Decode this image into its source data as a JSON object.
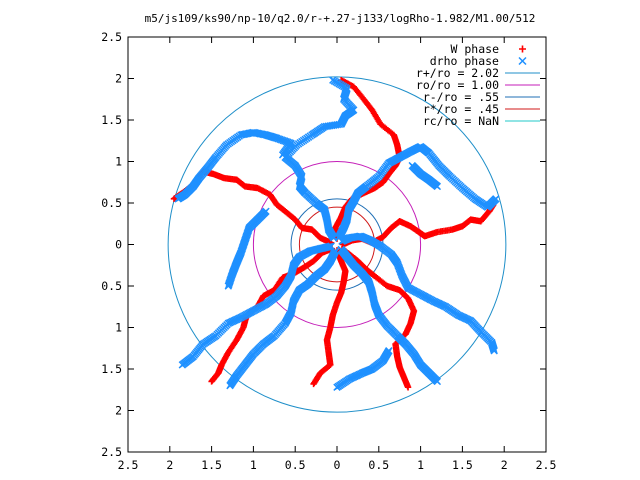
{
  "chart_data": {
    "type": "scatter",
    "title": "m5/js109/ks90/np-10/q2.0/r-+.27-j133/logRho-1.982/M1.00/512",
    "xlabel": "",
    "ylabel": "",
    "xlim": [
      -2.5,
      2.5
    ],
    "ylim": [
      -2.5,
      2.5
    ],
    "x_ticks": [
      "2.5",
      "2",
      "1.5",
      "1",
      "0.5",
      "0",
      "0.5",
      "1",
      "1.5",
      "2",
      "2.5"
    ],
    "y_ticks": [
      "2.5",
      "2",
      "1.5",
      "1",
      "0.5",
      "0",
      "0.5",
      "1",
      "1.5",
      "2",
      "2.5"
    ],
    "grid": false,
    "legend_position": "top-right",
    "series": [
      {
        "name": "W phase",
        "marker": "+",
        "color": "#ff0000",
        "arms": [
          [
            [
              0.07,
              0.0
            ],
            [
              0.18,
              0.05
            ],
            [
              0.3,
              0.07
            ],
            [
              0.42,
              0.02
            ],
            [
              0.55,
              0.09
            ],
            [
              0.65,
              0.2
            ],
            [
              0.75,
              0.28
            ],
            [
              0.88,
              0.22
            ],
            [
              0.98,
              0.15
            ],
            [
              1.05,
              0.1
            ],
            [
              1.2,
              0.15
            ],
            [
              1.38,
              0.18
            ],
            [
              1.5,
              0.22
            ],
            [
              1.6,
              0.3
            ],
            [
              1.72,
              0.28
            ],
            [
              1.82,
              0.4
            ],
            [
              1.87,
              0.48
            ]
          ],
          [
            [
              0.0,
              0.07
            ],
            [
              -0.02,
              0.2
            ],
            [
              0.05,
              0.33
            ],
            [
              0.1,
              0.45
            ],
            [
              0.18,
              0.55
            ],
            [
              0.32,
              0.62
            ],
            [
              0.45,
              0.68
            ],
            [
              0.55,
              0.75
            ],
            [
              0.62,
              0.85
            ],
            [
              0.7,
              0.95
            ],
            [
              0.75,
              1.05
            ],
            [
              0.72,
              1.2
            ],
            [
              0.68,
              1.32
            ],
            [
              0.52,
              1.45
            ],
            [
              0.42,
              1.62
            ],
            [
              0.32,
              1.75
            ],
            [
              0.2,
              1.9
            ],
            [
              0.05,
              1.98
            ]
          ],
          [
            [
              -0.07,
              0.02
            ],
            [
              -0.2,
              0.08
            ],
            [
              -0.3,
              0.18
            ],
            [
              -0.42,
              0.2
            ],
            [
              -0.5,
              0.3
            ],
            [
              -0.62,
              0.4
            ],
            [
              -0.72,
              0.48
            ],
            [
              -0.8,
              0.6
            ],
            [
              -0.95,
              0.68
            ],
            [
              -1.1,
              0.7
            ],
            [
              -1.2,
              0.78
            ],
            [
              -1.35,
              0.8
            ],
            [
              -1.48,
              0.85
            ],
            [
              -1.6,
              0.88
            ],
            [
              -1.72,
              0.72
            ],
            [
              -1.85,
              0.62
            ],
            [
              -1.95,
              0.55
            ]
          ],
          [
            [
              -0.06,
              -0.05
            ],
            [
              -0.18,
              -0.1
            ],
            [
              -0.28,
              -0.2
            ],
            [
              -0.4,
              -0.28
            ],
            [
              -0.52,
              -0.35
            ],
            [
              -0.65,
              -0.4
            ],
            [
              -0.75,
              -0.55
            ],
            [
              -0.88,
              -0.62
            ],
            [
              -0.95,
              -0.75
            ],
            [
              -1.08,
              -0.85
            ],
            [
              -1.12,
              -1.0
            ],
            [
              -1.2,
              -1.15
            ],
            [
              -1.3,
              -1.3
            ],
            [
              -1.38,
              -1.45
            ],
            [
              -1.42,
              -1.55
            ],
            [
              -1.5,
              -1.65
            ]
          ],
          [
            [
              0.0,
              -0.07
            ],
            [
              0.05,
              -0.2
            ],
            [
              0.1,
              -0.32
            ],
            [
              0.08,
              -0.45
            ],
            [
              0.05,
              -0.58
            ],
            [
              0.0,
              -0.7
            ],
            [
              -0.05,
              -0.85
            ],
            [
              -0.08,
              -1.0
            ],
            [
              -0.12,
              -1.15
            ],
            [
              -0.1,
              -1.3
            ],
            [
              -0.08,
              -1.45
            ],
            [
              -0.2,
              -1.55
            ],
            [
              -0.28,
              -1.68
            ]
          ],
          [
            [
              0.06,
              -0.05
            ],
            [
              0.15,
              -0.12
            ],
            [
              0.25,
              -0.2
            ],
            [
              0.35,
              -0.3
            ],
            [
              0.45,
              -0.38
            ],
            [
              0.6,
              -0.5
            ],
            [
              0.75,
              -0.55
            ],
            [
              0.85,
              -0.65
            ],
            [
              0.92,
              -0.8
            ],
            [
              0.88,
              -0.95
            ],
            [
              0.82,
              -1.08
            ],
            [
              0.7,
              -1.2
            ],
            [
              0.72,
              -1.35
            ],
            [
              0.75,
              -1.48
            ],
            [
              0.8,
              -1.6
            ],
            [
              0.85,
              -1.72
            ]
          ]
        ]
      },
      {
        "name": "drho phase",
        "marker": "x",
        "color": "#1e90ff",
        "arms": [
          [
            [
              0.06,
              0.04
            ],
            [
              0.15,
              0.08
            ],
            [
              0.28,
              0.1
            ],
            [
              0.4,
              0.05
            ],
            [
              0.52,
              -0.02
            ],
            [
              0.65,
              -0.12
            ],
            [
              0.72,
              -0.22
            ],
            [
              0.78,
              -0.38
            ],
            [
              0.85,
              -0.52
            ],
            [
              1.0,
              -0.6
            ],
            [
              1.15,
              -0.68
            ],
            [
              1.3,
              -0.75
            ],
            [
              1.45,
              -0.85
            ],
            [
              1.6,
              -0.92
            ],
            [
              1.72,
              -1.05
            ],
            [
              1.85,
              -1.18
            ],
            [
              1.88,
              -1.28
            ]
          ],
          [
            [
              0.02,
              0.08
            ],
            [
              0.08,
              0.2
            ],
            [
              0.12,
              0.3
            ],
            [
              0.14,
              0.42
            ],
            [
              0.2,
              0.52
            ],
            [
              0.25,
              0.62
            ],
            [
              0.35,
              0.7
            ],
            [
              0.5,
              0.82
            ],
            [
              0.62,
              0.98
            ],
            [
              0.75,
              1.05
            ],
            [
              0.88,
              1.12
            ],
            [
              1.0,
              1.18
            ],
            [
              1.1,
              1.1
            ],
            [
              1.22,
              0.95
            ],
            [
              1.35,
              0.82
            ],
            [
              1.5,
              0.68
            ],
            [
              1.65,
              0.55
            ],
            [
              1.8,
              0.45
            ],
            [
              1.9,
              0.55
            ]
          ],
          [
            [
              -0.04,
              0.08
            ],
            [
              -0.1,
              0.18
            ],
            [
              -0.12,
              0.3
            ],
            [
              -0.15,
              0.42
            ],
            [
              -0.25,
              0.5
            ],
            [
              -0.38,
              0.62
            ],
            [
              -0.45,
              0.7
            ],
            [
              -0.42,
              0.82
            ],
            [
              -0.5,
              0.95
            ],
            [
              -0.62,
              1.05
            ],
            [
              -0.48,
              1.2
            ],
            [
              -0.3,
              1.32
            ],
            [
              -0.15,
              1.42
            ],
            [
              0.05,
              1.45
            ],
            [
              0.1,
              1.55
            ],
            [
              0.2,
              1.62
            ],
            [
              0.08,
              1.75
            ],
            [
              0.12,
              1.88
            ],
            [
              -0.05,
              1.98
            ]
          ],
          [
            [
              -0.07,
              -0.02
            ],
            [
              -0.2,
              -0.05
            ],
            [
              -0.32,
              -0.08
            ],
            [
              -0.45,
              -0.15
            ],
            [
              -0.52,
              -0.25
            ],
            [
              -0.55,
              -0.38
            ],
            [
              -0.62,
              -0.5
            ],
            [
              -0.72,
              -0.62
            ],
            [
              -0.85,
              -0.72
            ],
            [
              -1.0,
              -0.8
            ],
            [
              -1.15,
              -0.88
            ],
            [
              -1.3,
              -0.95
            ],
            [
              -1.45,
              -1.1
            ],
            [
              -1.6,
              -1.2
            ],
            [
              -1.72,
              -1.35
            ],
            [
              -1.85,
              -1.45
            ]
          ],
          [
            [
              -0.02,
              -0.08
            ],
            [
              -0.08,
              -0.2
            ],
            [
              -0.15,
              -0.3
            ],
            [
              -0.25,
              -0.38
            ],
            [
              -0.35,
              -0.48
            ],
            [
              -0.45,
              -0.55
            ],
            [
              -0.52,
              -0.68
            ],
            [
              -0.55,
              -0.82
            ],
            [
              -0.62,
              -0.95
            ],
            [
              -0.75,
              -1.1
            ],
            [
              -0.88,
              -1.2
            ],
            [
              -1.0,
              -1.32
            ],
            [
              -1.1,
              -1.45
            ],
            [
              -1.2,
              -1.58
            ],
            [
              -1.28,
              -1.7
            ]
          ],
          [
            [
              0.05,
              -0.06
            ],
            [
              0.12,
              -0.15
            ],
            [
              0.2,
              -0.25
            ],
            [
              0.3,
              -0.35
            ],
            [
              0.38,
              -0.45
            ],
            [
              0.42,
              -0.58
            ],
            [
              0.45,
              -0.72
            ],
            [
              0.5,
              -0.85
            ],
            [
              0.6,
              -0.98
            ],
            [
              0.72,
              -1.1
            ],
            [
              0.82,
              -1.2
            ],
            [
              0.92,
              -1.32
            ],
            [
              1.0,
              -1.45
            ],
            [
              1.1,
              -1.55
            ],
            [
              1.2,
              -1.65
            ]
          ],
          [
            [
              -0.65,
              1.08
            ],
            [
              -0.55,
              1.22
            ],
            [
              -0.72,
              1.28
            ],
            [
              -0.85,
              1.32
            ],
            [
              -1.0,
              1.35
            ],
            [
              -1.15,
              1.32
            ],
            [
              -1.32,
              1.2
            ],
            [
              -1.45,
              1.05
            ],
            [
              -1.55,
              0.92
            ],
            [
              -1.65,
              0.8
            ],
            [
              -1.72,
              0.7
            ],
            [
              -1.82,
              0.6
            ],
            [
              -1.9,
              0.55
            ]
          ],
          [
            [
              -0.85,
              0.4
            ],
            [
              -0.95,
              0.3
            ],
            [
              -1.05,
              0.2
            ],
            [
              -1.1,
              0.05
            ],
            [
              -1.15,
              -0.1
            ],
            [
              -1.2,
              -0.22
            ],
            [
              -1.25,
              -0.35
            ],
            [
              -1.3,
              -0.5
            ]
          ],
          [
            [
              0.0,
              -1.72
            ],
            [
              0.15,
              -1.62
            ],
            [
              0.3,
              -1.55
            ],
            [
              0.42,
              -1.5
            ],
            [
              0.55,
              -1.4
            ],
            [
              0.62,
              -1.28
            ]
          ],
          [
            [
              0.9,
              0.95
            ],
            [
              1.0,
              0.85
            ],
            [
              1.1,
              0.78
            ],
            [
              1.2,
              0.7
            ]
          ]
        ]
      },
      {
        "name": "r+/ro = 2.02",
        "type": "circle",
        "radius": 2.02,
        "color": "#1f8fc9"
      },
      {
        "name": "ro/ro = 1.00",
        "type": "circle",
        "radius": 1.0,
        "color": "#c41eb8"
      },
      {
        "name": "r-/ro = .55",
        "type": "circle",
        "radius": 0.55,
        "color": "#1f6fb5"
      },
      {
        "name": "r*/ro = .45",
        "type": "circle",
        "radius": 0.45,
        "color": "#d01818"
      },
      {
        "name": "rc/ro = NaN",
        "type": "circle",
        "radius": null,
        "color": "#22c8c8"
      }
    ]
  }
}
